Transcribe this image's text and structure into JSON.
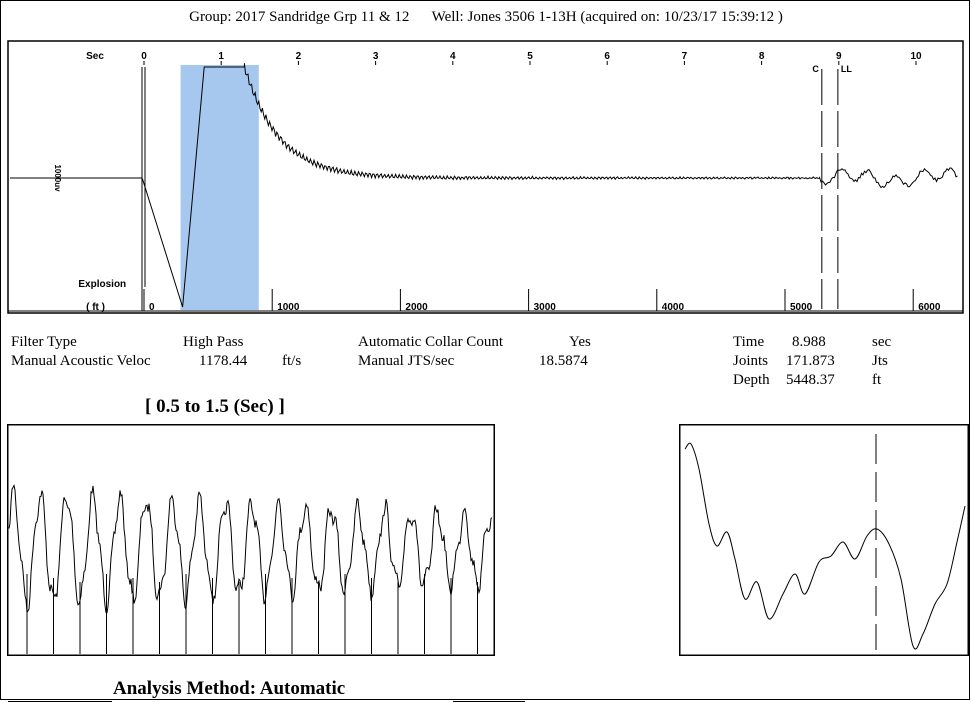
{
  "header": {
    "group_label": "Group:",
    "group_value": "2017 Sandridge Grp 11 & 12",
    "well_label": "Well:",
    "well_value": "Jones 3506 1-13H",
    "acquired": "(acquired on: 10/23/17 15:39:12 )"
  },
  "settings": {
    "filter_type_label": "Filter Type",
    "filter_type_value": "High Pass",
    "velocity_label": "Manual Acoustic Veloc",
    "velocity_value": "1178.44",
    "velocity_unit": "ft/s",
    "auto_collar_label": "Automatic Collar Count",
    "auto_collar_value": "Yes",
    "jts_label": "Manual JTS/sec",
    "jts_value": "18.5874"
  },
  "readout": {
    "time_label": "Time",
    "time_value": "8.988",
    "time_unit": "sec",
    "joints_label": "Joints",
    "joints_value": "171.873",
    "joints_unit": "Jts",
    "depth_label": "Depth",
    "depth_value": "5448.37",
    "depth_unit": "ft"
  },
  "window_title": "[ 0.5  to  1.5 (Sec) ]",
  "footer": "Analysis Method:   Automatic",
  "colors": {
    "selection": "#a6c8ee",
    "trace": "#000000"
  },
  "chart_data": [
    {
      "type": "line",
      "name": "main-acoustic-trace",
      "title": "",
      "top_axis_label": "Sec",
      "bottom_axis_label": "( ft )",
      "left_label": "1000uv",
      "explosion_label": "Explosion",
      "marker_labels": [
        "C",
        "LL"
      ],
      "sec_ticks": [
        0,
        1,
        2,
        3,
        4,
        5,
        6,
        7,
        8,
        9,
        10
      ],
      "ft_ticks": [
        0,
        1000,
        2000,
        3000,
        4000,
        5000,
        6000
      ],
      "xlim_sec": [
        -0.1,
        10.6
      ],
      "highlight_sec": [
        0.5,
        1.5
      ],
      "explosion_sec": 0.0,
      "marker_c_sec": 8.78,
      "marker_ll_sec": 8.988,
      "grid": false,
      "legend": "none"
    },
    {
      "type": "line",
      "name": "zoom-window",
      "title": "[ 0.5  to  1.5 (Sec) ]",
      "xlim_sec": [
        0.5,
        1.5
      ],
      "peaks": 18
    },
    {
      "type": "line",
      "name": "collar-detail",
      "cursor_sec": 8.988
    }
  ]
}
